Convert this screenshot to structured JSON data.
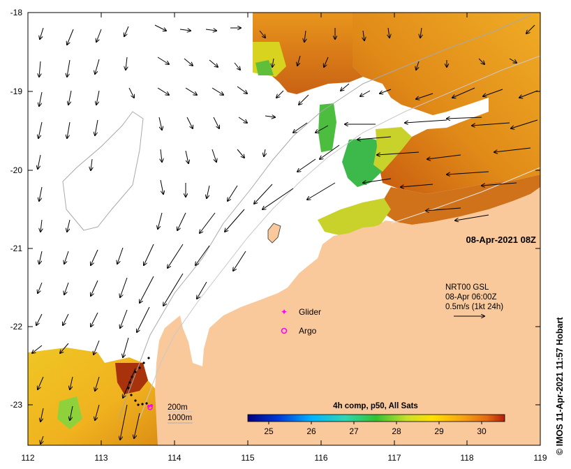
{
  "map": {
    "datetime": "08-Apr-2021 08Z",
    "current_legend": {
      "line1": "NRT00 GSL",
      "line2": "08-Apr 06:00Z",
      "line3": "0.5m/s (1kt 24h)"
    },
    "markers": {
      "glider_label": "Glider",
      "argo_label": "Argo"
    },
    "depth_legend": {
      "a": "200m",
      "b": "1000m"
    },
    "colorbar": {
      "title": "4h comp, p50, All Sats",
      "ticks": [
        "25",
        "26",
        "27",
        "28",
        "29",
        "30"
      ]
    },
    "x_ticks": [
      "112",
      "113",
      "114",
      "115",
      "116",
      "117",
      "118",
      "119"
    ],
    "y_ticks": [
      "-18",
      "-19",
      "-20",
      "-21",
      "-22",
      "-23"
    ],
    "credit": "© IMOS 11-Apr-2021 11:57 Hobart",
    "colors": {
      "land": "#f9c99c",
      "sst_hot": "#c4520e",
      "sst_warm": "#e89a17",
      "sst_yellow": "#f3dc2a",
      "sst_green": "#39b54a"
    }
  }
}
